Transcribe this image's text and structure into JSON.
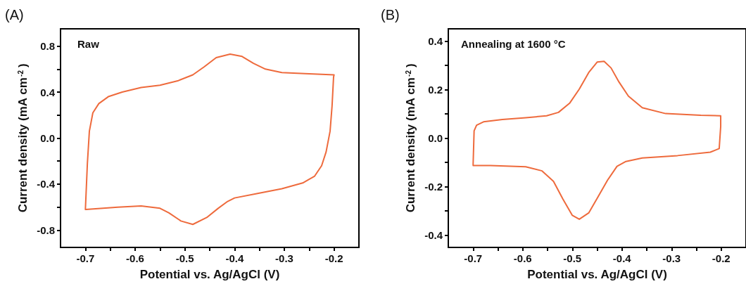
{
  "chart_data": [
    {
      "type": "line",
      "title": "(A)",
      "xlabel": "Potential vs. Ag/AgCl (V)",
      "ylabel": "Current density (mA cm$^{-2}$)",
      "annotations": [
        "Raw"
      ],
      "xlim": [
        -0.75,
        -0.15
      ],
      "xticks": [
        -0.7,
        {
          "value": -0.65,
          "label": null
        },
        -0.6,
        {
          "value": -0.55,
          "label": null
        },
        -0.5,
        {
          "value": -0.45,
          "label": null
        },
        -0.4,
        {
          "value": -0.35,
          "label": null
        },
        -0.3,
        {
          "value": -0.25,
          "label": null
        },
        -0.2
      ],
      "ylim": [
        -0.95,
        0.95
      ],
      "yticks": [
        -0.8,
        {
          "value": -0.6,
          "label": null
        },
        -0.4,
        {
          "value": -0.2,
          "label": null
        },
        {
          "value": 0,
          "label": "0.0"
        },
        {
          "value": 0.2,
          "label": null
        },
        0.4,
        {
          "value": 0.6,
          "label": null
        },
        0.8
      ],
      "grid": false,
      "marker": "none",
      "line_style": "solid",
      "series": [
        {
          "color": "#ee6a3c",
          "x": [
            -0.7,
            -0.696,
            -0.692,
            -0.685,
            -0.673,
            -0.654,
            -0.626,
            -0.588,
            -0.55,
            -0.513,
            -0.484,
            -0.461,
            -0.437,
            -0.409,
            -0.385,
            -0.362,
            -0.338,
            -0.305,
            -0.258,
            -0.2,
            -0.201,
            -0.204,
            -0.208,
            -0.216,
            -0.225,
            -0.239,
            -0.263,
            -0.305,
            -0.352,
            -0.4,
            -0.414,
            -0.433,
            -0.456,
            -0.484,
            -0.508,
            -0.532,
            -0.55,
            -0.588,
            -0.635,
            -0.699
          ],
          "values": [
            -0.62,
            -0.22,
            0.06,
            0.22,
            0.3,
            0.36,
            0.4,
            0.44,
            0.46,
            0.5,
            0.55,
            0.62,
            0.7,
            0.73,
            0.71,
            0.65,
            0.6,
            0.57,
            0.56,
            0.55,
            0.53,
            0.28,
            0.06,
            -0.12,
            -0.24,
            -0.33,
            -0.39,
            -0.44,
            -0.48,
            -0.52,
            -0.55,
            -0.61,
            -0.69,
            -0.75,
            -0.72,
            -0.65,
            -0.61,
            -0.59,
            -0.6,
            -0.62
          ]
        }
      ]
    },
    {
      "type": "line",
      "title": "(B)",
      "xlabel": "Potential vs. Ag/AgCl (V)",
      "ylabel": "Current density (mA cm$^{-2}$)",
      "annotations": [
        "Annealing at 1600 °C"
      ],
      "xlim": [
        -0.75,
        -0.15
      ],
      "xticks": [
        -0.7,
        {
          "value": -0.65,
          "label": null
        },
        -0.6,
        {
          "value": -0.55,
          "label": null
        },
        -0.5,
        {
          "value": -0.45,
          "label": null
        },
        -0.4,
        {
          "value": -0.35,
          "label": null
        },
        -0.3,
        {
          "value": -0.25,
          "label": null
        },
        -0.2
      ],
      "ylim": [
        -0.45,
        0.45
      ],
      "yticks": [
        -0.4,
        {
          "value": -0.3,
          "label": null
        },
        -0.2,
        {
          "value": -0.1,
          "label": null
        },
        {
          "value": 0,
          "label": "0.0"
        },
        {
          "value": 0.1,
          "label": null
        },
        0.2,
        {
          "value": 0.3,
          "label": null
        },
        0.4
      ],
      "grid": false,
      "marker": "none",
      "line_style": "solid",
      "series": [
        {
          "color": "#ee6a3c",
          "x": [
            -0.7,
            -0.698,
            -0.693,
            -0.679,
            -0.641,
            -0.594,
            -0.552,
            -0.528,
            -0.505,
            -0.486,
            -0.467,
            -0.45,
            -0.436,
            -0.422,
            -0.406,
            -0.387,
            -0.359,
            -0.312,
            -0.241,
            -0.201,
            -0.201,
            -0.204,
            -0.222,
            -0.288,
            -0.359,
            -0.392,
            -0.41,
            -0.429,
            -0.448,
            -0.467,
            -0.486,
            -0.5,
            -0.519,
            -0.538,
            -0.561,
            -0.594,
            -0.665,
            -0.7
          ],
          "values": [
            -0.11,
            0.03,
            0.053,
            0.067,
            0.077,
            0.084,
            0.092,
            0.106,
            0.145,
            0.202,
            0.27,
            0.313,
            0.316,
            0.289,
            0.231,
            0.173,
            0.125,
            0.101,
            0.094,
            0.092,
            0.048,
            -0.043,
            -0.058,
            -0.072,
            -0.082,
            -0.096,
            -0.116,
            -0.173,
            -0.241,
            -0.308,
            -0.334,
            -0.318,
            -0.251,
            -0.178,
            -0.135,
            -0.118,
            -0.113,
            -0.113
          ]
        }
      ]
    }
  ]
}
